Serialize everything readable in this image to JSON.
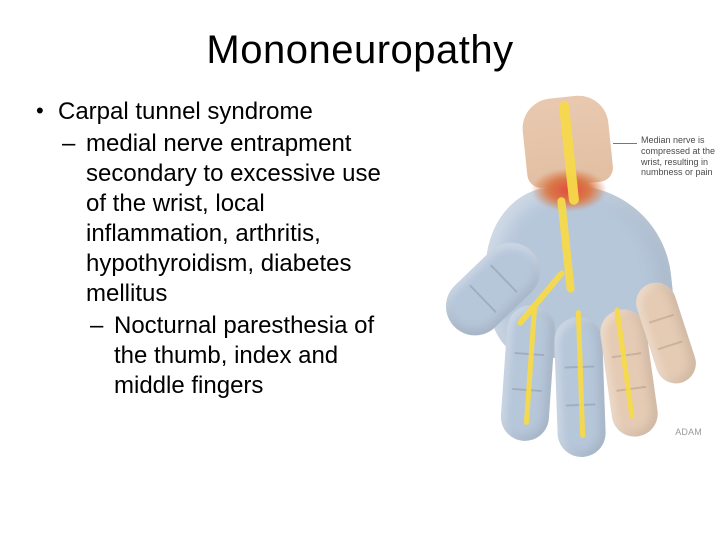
{
  "title": "Mononeuropathy",
  "bullet1": "Carpal tunnel syndrome",
  "sub1": "medial nerve entrapment secondary to excessive use of the wrist, local inflammation, arthritis, hypothyroidism, diabetes mellitus",
  "sub2": "Nocturnal paresthesia of the thumb, index and middle fingers",
  "diagram": {
    "callout_text": "Median nerve is compressed at the wrist, resulting in numbness or pain",
    "credit": "ADAM",
    "palette": {
      "skin": "#e5cbb4",
      "affected_skin": "#b7c7da",
      "nerve": "#f5d94a",
      "inflammation": "#e24a3f",
      "background": "#ffffff",
      "text": "#000000"
    }
  }
}
